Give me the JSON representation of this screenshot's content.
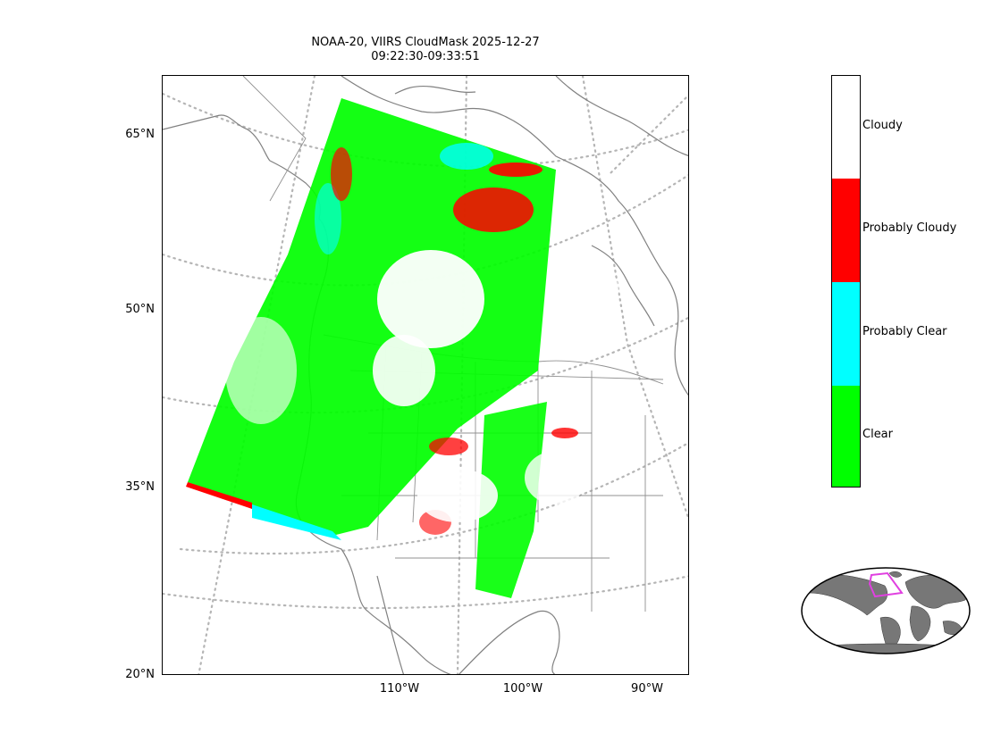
{
  "title": {
    "line1": "NOAA-20, VIIRS CloudMask 2025-12-27",
    "line2": "09:22:30-09:33:51"
  },
  "latitude_labels": [
    "65°N",
    "50°N",
    "35°N",
    "20°N"
  ],
  "longitude_labels": [
    "110°W",
    "100°W",
    "90°W"
  ],
  "colorbar": {
    "categories": [
      {
        "label": "Cloudy",
        "color": "#ffffff"
      },
      {
        "label": "Probably Cloudy",
        "color": "#ff0000"
      },
      {
        "label": "Probably Clear",
        "color": "#00ffff"
      },
      {
        "label": "Clear",
        "color": "#00ff00"
      }
    ]
  },
  "colors": {
    "coastline": "#808080",
    "graticule": "#b0b0b0",
    "inset_land": "#777777",
    "inset_swath_outline": "#e040e0"
  }
}
